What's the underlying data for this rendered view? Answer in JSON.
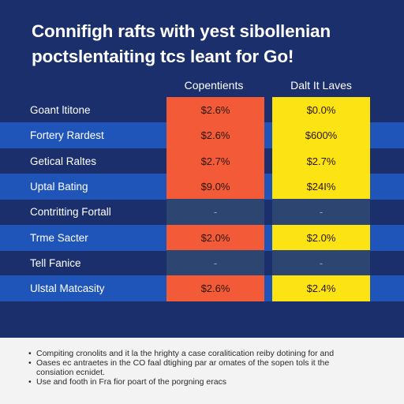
{
  "title_lines": [
    "Connifigh rafts with yest sibollenian",
    "poctslentaiting tcs leant for Go!"
  ],
  "colors": {
    "background": "#1b2f6c",
    "highlight_row": "#1f55b8",
    "red": "#f25a38",
    "yellow": "#fbe314",
    "empty": "#2d4571",
    "footer": "#f3f3f4"
  },
  "chart_data": {
    "type": "table",
    "columns": [
      "Copentients",
      "Dalt It Laves"
    ],
    "rows": [
      {
        "label": "Goant ltitone",
        "highlight": false,
        "values": [
          "$2.6%",
          "$0.0%"
        ]
      },
      {
        "label": "Fortery Rardest",
        "highlight": true,
        "values": [
          "$2.6%",
          "$600%"
        ]
      },
      {
        "label": "Getical Raltes",
        "highlight": false,
        "values": [
          "$2.7%",
          "$2.7%"
        ]
      },
      {
        "label": "Uptal Bating",
        "highlight": true,
        "values": [
          "$9.0%",
          "$24I%"
        ]
      },
      {
        "label": "Contritting Fortall",
        "highlight": false,
        "values": [
          "-",
          "-"
        ]
      },
      {
        "label": "Trme Sacter",
        "highlight": true,
        "values": [
          "$2.0%",
          "$2.0%"
        ]
      },
      {
        "label": "Tell Fanice",
        "highlight": false,
        "values": [
          "-",
          "-"
        ]
      },
      {
        "label": "Ulstal Matcasity",
        "highlight": true,
        "values": [
          "$2.6%",
          "$2.4%"
        ]
      }
    ]
  },
  "footer_notes": [
    {
      "bullet": "•",
      "text": "Compiting cronolits and it la the hrighty a case coralitication reiby dotining for and"
    },
    {
      "bullet": "•",
      "text": "Oases ec antraetes in the CO faal dtighing par ar omates of the sopen tols it the"
    },
    {
      "bullet": "",
      "text": "consiation ecnidet."
    },
    {
      "bullet": "•",
      "text": "Use and footh in Fra fior poart of the porgning eracs"
    }
  ]
}
